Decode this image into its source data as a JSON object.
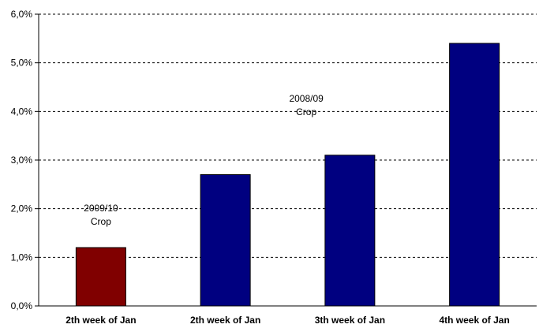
{
  "chart_data": {
    "type": "bar",
    "categories": [
      "2th week of Jan",
      "2th week of Jan",
      "3th week of Jan",
      "4th week of Jan"
    ],
    "values": [
      1.2,
      2.7,
      3.1,
      5.4
    ],
    "bar_colors": [
      "#800000",
      "#000080",
      "#000080",
      "#000080"
    ],
    "ylim": [
      0,
      6
    ],
    "yticks": [
      0,
      1,
      2,
      3,
      4,
      5,
      6
    ],
    "ytick_labels": [
      "0,0%",
      "1,0%",
      "2,0%",
      "3,0%",
      "4,0%",
      "5,0%",
      "6,0%"
    ],
    "grid": true,
    "title": "",
    "xlabel": "",
    "ylabel": "",
    "annotations": [
      {
        "lines": [
          "2009/10",
          "Crop"
        ],
        "category_index": 0,
        "y": 1.95
      },
      {
        "lines": [
          "2008/09",
          "Crop"
        ],
        "category_index": 1.65,
        "y": 4.2
      }
    ]
  }
}
